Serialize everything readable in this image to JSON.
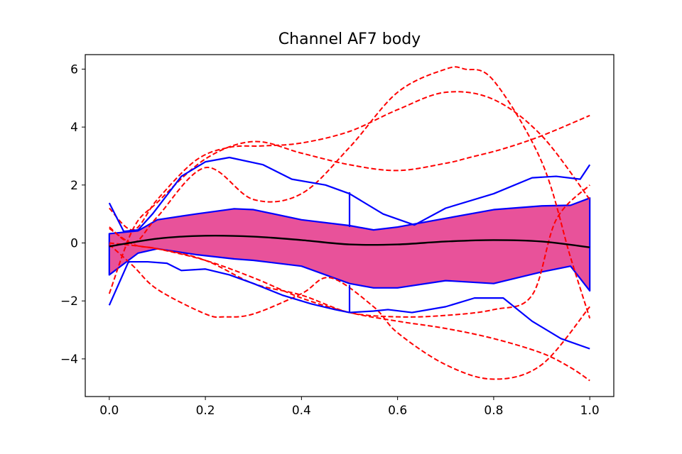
{
  "chart_data": {
    "type": "line",
    "title": "Channel AF7 body",
    "xlabel": "",
    "ylabel": "",
    "xlim": [
      -0.05,
      1.05
    ],
    "ylim": [
      -5.3,
      6.5
    ],
    "xticks": [
      0.0,
      0.2,
      0.4,
      0.6,
      0.8,
      1.0
    ],
    "xtick_labels": [
      "0.0",
      "0.2",
      "0.4",
      "0.6",
      "0.8",
      "1.0"
    ],
    "yticks": [
      -4,
      -2,
      0,
      2,
      4,
      6
    ],
    "ytick_labels": [
      "−4",
      "−2",
      "0",
      "2",
      "4",
      "6"
    ],
    "grid": false,
    "colors": {
      "band": "#e8529a",
      "boundary": "#0000ff",
      "median": "#000000",
      "outlier": "#ff0000"
    },
    "band": {
      "x": [
        0.0,
        0.06,
        0.1,
        0.18,
        0.26,
        0.3,
        0.4,
        0.5,
        0.55,
        0.6,
        0.7,
        0.8,
        0.9,
        0.96,
        1.0
      ],
      "upper": [
        0.32,
        0.42,
        0.8,
        1.0,
        1.18,
        1.15,
        0.8,
        0.6,
        0.45,
        0.55,
        0.85,
        1.15,
        1.28,
        1.3,
        1.55
      ],
      "lower": [
        -1.1,
        -0.35,
        -0.2,
        -0.4,
        -0.55,
        -0.6,
        -0.8,
        -1.4,
        -1.55,
        -1.55,
        -1.3,
        -1.4,
        -1.0,
        -0.8,
        -1.65
      ]
    },
    "median": {
      "x": [
        0.0,
        0.1,
        0.2,
        0.3,
        0.4,
        0.5,
        0.6,
        0.7,
        0.8,
        0.9,
        1.0
      ],
      "y": [
        -0.12,
        0.15,
        0.25,
        0.22,
        0.1,
        -0.05,
        -0.05,
        0.05,
        0.1,
        0.05,
        -0.15
      ]
    },
    "whiskers": [
      {
        "x": [
          0.0,
          0.03,
          0.06,
          0.09,
          0.15,
          0.2,
          0.25,
          0.32,
          0.38,
          0.45,
          0.5,
          0.57,
          0.635,
          0.7,
          0.8,
          0.88,
          0.93,
          0.98,
          1.0
        ],
        "y": [
          1.38,
          0.4,
          0.45,
          1.0,
          2.3,
          2.8,
          2.95,
          2.7,
          2.2,
          2.0,
          1.7,
          1.0,
          0.62,
          1.2,
          1.7,
          2.25,
          2.3,
          2.2,
          2.7
        ]
      },
      {
        "x": [
          0.0,
          0.04,
          0.08,
          0.12,
          0.15,
          0.2,
          0.25,
          0.3,
          0.36,
          0.42,
          0.47,
          0.5,
          0.55,
          0.58,
          0.63,
          0.7,
          0.76,
          0.82,
          0.88,
          0.94,
          1.0
        ],
        "y": [
          -2.15,
          -0.65,
          -0.65,
          -0.7,
          -0.95,
          -0.9,
          -1.1,
          -1.4,
          -1.8,
          -2.1,
          -2.3,
          -2.4,
          -2.35,
          -2.3,
          -2.4,
          -2.2,
          -1.9,
          -1.9,
          -2.7,
          -3.3,
          -3.65
        ]
      },
      {
        "x": [
          0.5,
          0.5
        ],
        "y": [
          1.75,
          0.55
        ]
      },
      {
        "x": [
          0.5,
          0.5
        ],
        "y": [
          -1.45,
          -2.4
        ]
      }
    ],
    "outliers": [
      {
        "x": [
          0.0,
          0.05,
          0.1,
          0.18,
          0.25,
          0.32,
          0.4,
          0.5,
          0.6,
          0.7,
          0.8,
          0.9,
          1.0
        ],
        "y": [
          1.2,
          0.45,
          1.5,
          2.85,
          3.3,
          3.35,
          3.45,
          3.85,
          4.6,
          5.2,
          4.95,
          3.7,
          1.5
        ]
      },
      {
        "x": [
          0.0,
          0.05,
          0.1,
          0.2,
          0.3,
          0.4,
          0.5,
          0.6,
          0.7,
          0.75,
          0.82,
          0.9,
          1.0
        ],
        "y": [
          -1.75,
          0.5,
          1.4,
          2.9,
          3.5,
          3.1,
          2.7,
          2.5,
          2.75,
          2.95,
          3.25,
          3.7,
          4.4
        ]
      },
      {
        "x": [
          0.0,
          0.05,
          0.1,
          0.2,
          0.3,
          0.4,
          0.5,
          0.6,
          0.7,
          0.74,
          0.8,
          0.9,
          0.96,
          1.0
        ],
        "y": [
          0.55,
          0.0,
          0.9,
          2.6,
          1.5,
          1.7,
          3.3,
          5.2,
          6.0,
          6.0,
          5.6,
          2.8,
          -0.5,
          -2.6
        ]
      },
      {
        "x": [
          0.0,
          0.05,
          0.1,
          0.2,
          0.3,
          0.4,
          0.5,
          0.6,
          0.7,
          0.8,
          0.9,
          0.96,
          1.0
        ],
        "y": [
          0.5,
          -0.05,
          -0.2,
          -0.6,
          -1.2,
          -1.9,
          -2.4,
          -2.7,
          -2.95,
          -3.3,
          -3.8,
          -4.3,
          -4.75
        ]
      },
      {
        "x": [
          0.0,
          0.05,
          0.1,
          0.2,
          0.24,
          0.3,
          0.4,
          0.46,
          0.55,
          0.6,
          0.7,
          0.8,
          0.9,
          1.0
        ],
        "y": [
          -0.05,
          -0.8,
          -1.6,
          -2.45,
          -2.55,
          -2.45,
          -1.75,
          -1.2,
          -2.2,
          -3.1,
          -4.2,
          -4.7,
          -4.2,
          -2.2
        ]
      },
      {
        "x": [
          0.0,
          0.1,
          0.2,
          0.3,
          0.4,
          0.5,
          0.6,
          0.7,
          0.8,
          0.88,
          0.93,
          1.0
        ],
        "y": [
          0.0,
          -0.2,
          -0.6,
          -1.4,
          -1.8,
          -2.4,
          -2.55,
          -2.5,
          -2.3,
          -1.8,
          0.8,
          2.0
        ]
      }
    ]
  }
}
